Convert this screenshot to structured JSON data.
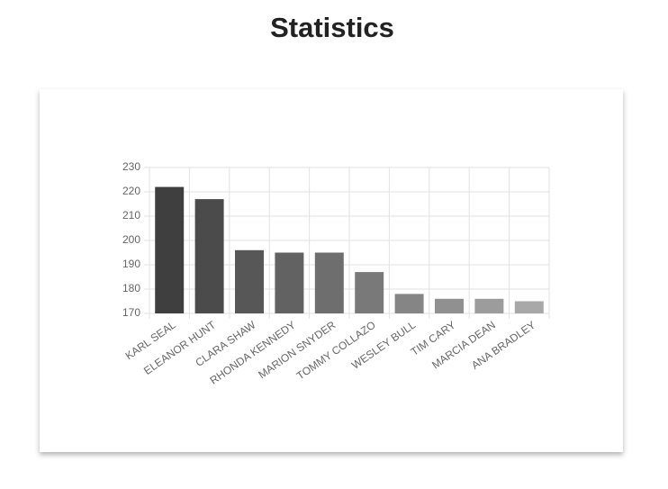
{
  "chart_data": {
    "type": "bar",
    "title": "Statistics",
    "categories": [
      "KARL SEAL",
      "ELEANOR HUNT",
      "CLARA SHAW",
      "RHONDA KENNEDY",
      "MARION SNYDER",
      "TOMMY COLLAZO",
      "WESLEY BULL",
      "TIM CARY",
      "MARCIA DEAN",
      "ANA BRADLEY"
    ],
    "values": [
      222,
      217,
      196,
      195,
      195,
      187,
      178,
      176,
      176,
      175
    ],
    "colors": [
      "#3f3f3f",
      "#4b4b4b",
      "#575757",
      "#626262",
      "#6e6e6e",
      "#797979",
      "#858585",
      "#909090",
      "#9c9c9c",
      "#a8a8a8"
    ],
    "ylim": [
      170,
      230
    ],
    "yticks": [
      170,
      180,
      190,
      200,
      210,
      220,
      230
    ],
    "grid": true
  }
}
